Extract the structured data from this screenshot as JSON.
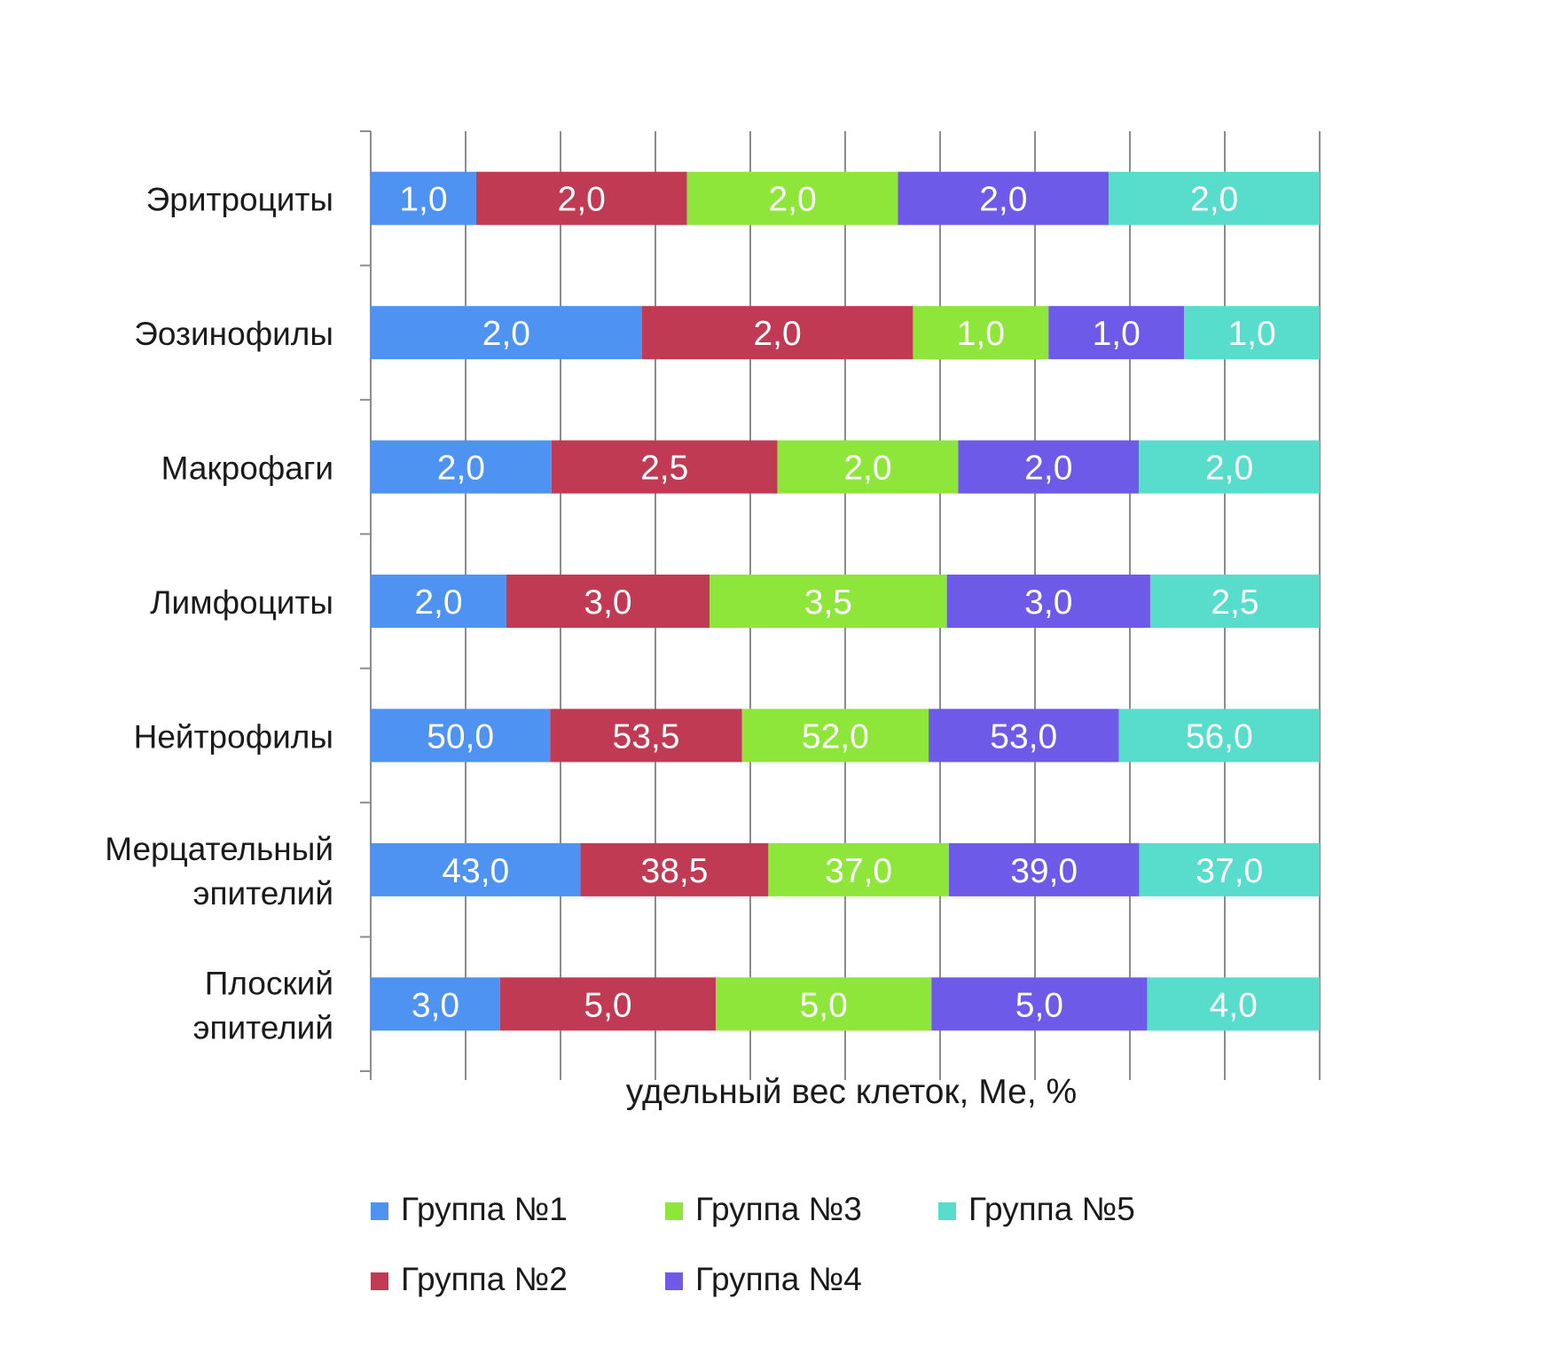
{
  "chart_data": {
    "type": "bar",
    "orientation": "horizontal",
    "stacked": "percent",
    "title": "",
    "xlabel": "удельный вес клеток, Ме, %",
    "ylabel": "",
    "grid": true,
    "legend_position": "bottom",
    "categories": [
      [
        "Эритроциты"
      ],
      [
        "Эозинофилы"
      ],
      [
        "Макрофаги"
      ],
      [
        "Лимфоциты"
      ],
      [
        "Нейтрофилы"
      ],
      [
        "Мерцательный",
        "эпителий"
      ],
      [
        "Плоский",
        "эпителий"
      ]
    ],
    "series": [
      {
        "name": "Группа №1",
        "color": "#4e93f2",
        "values": [
          1.0,
          2.0,
          2.0,
          2.0,
          50.0,
          43.0,
          3.0
        ],
        "labels": [
          "1,0",
          "2,0",
          "2,0",
          "2,0",
          "50,0",
          "43,0",
          "3,0"
        ]
      },
      {
        "name": "Группа №2",
        "color": "#c03a54",
        "values": [
          2.0,
          2.0,
          2.5,
          3.0,
          53.5,
          38.5,
          5.0
        ],
        "labels": [
          "2,0",
          "2,0",
          "2,5",
          "3,0",
          "53,5",
          "38,5",
          "5,0"
        ]
      },
      {
        "name": "Группа №3",
        "color": "#8fe63a",
        "values": [
          2.0,
          1.0,
          2.0,
          3.5,
          52.0,
          37.0,
          5.0
        ],
        "labels": [
          "2,0",
          "1,0",
          "2,0",
          "3,5",
          "52,0",
          "37,0",
          "5,0"
        ]
      },
      {
        "name": "Группа №4",
        "color": "#6e5ae8",
        "values": [
          2.0,
          1.0,
          2.0,
          3.0,
          53.0,
          39.0,
          5.0
        ],
        "labels": [
          "2,0",
          "1,0",
          "2,0",
          "3,0",
          "53,0",
          "39,0",
          "5,0"
        ]
      },
      {
        "name": "Группа №5",
        "color": "#58dccb",
        "values": [
          2.0,
          1.0,
          2.0,
          2.5,
          56.0,
          37.0,
          4.0
        ],
        "labels": [
          "2,0",
          "1,0",
          "2,0",
          "2,5",
          "56,0",
          "37,0",
          "4,0"
        ]
      }
    ]
  }
}
